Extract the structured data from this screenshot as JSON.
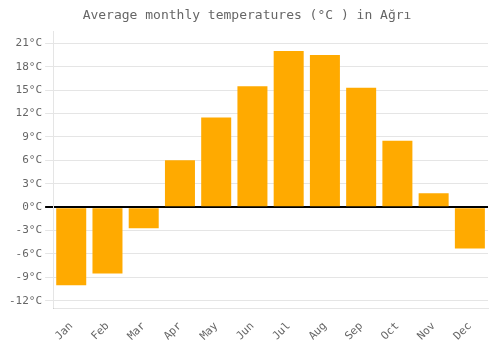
{
  "chart_data": {
    "type": "bar",
    "title": "Average monthly temperatures (°C ) in Ağrı",
    "categories": [
      "Jan",
      "Feb",
      "Mar",
      "Apr",
      "May",
      "Jun",
      "Jul",
      "Aug",
      "Sep",
      "Oct",
      "Nov",
      "Dec"
    ],
    "values": [
      -10,
      -8.5,
      -2.7,
      6,
      11.5,
      15.5,
      20,
      19.5,
      15.3,
      8.5,
      1.8,
      -5.3
    ],
    "color": "#FFAA00",
    "ylim": [
      -13,
      22.5
    ],
    "yticks": [
      {
        "value": -12,
        "label": "-12°C"
      },
      {
        "value": -9,
        "label": "-9°C"
      },
      {
        "value": -6,
        "label": "-6°C"
      },
      {
        "value": -3,
        "label": "-3°C"
      },
      {
        "value": 0,
        "label": "0°C"
      },
      {
        "value": 3,
        "label": "3°C"
      },
      {
        "value": 6,
        "label": "6°C"
      },
      {
        "value": 9,
        "label": "9°C"
      },
      {
        "value": 12,
        "label": "12°C"
      },
      {
        "value": 15,
        "label": "15°C"
      },
      {
        "value": 18,
        "label": "18°C"
      },
      {
        "value": 21,
        "label": "21°C"
      }
    ],
    "grid": true
  }
}
